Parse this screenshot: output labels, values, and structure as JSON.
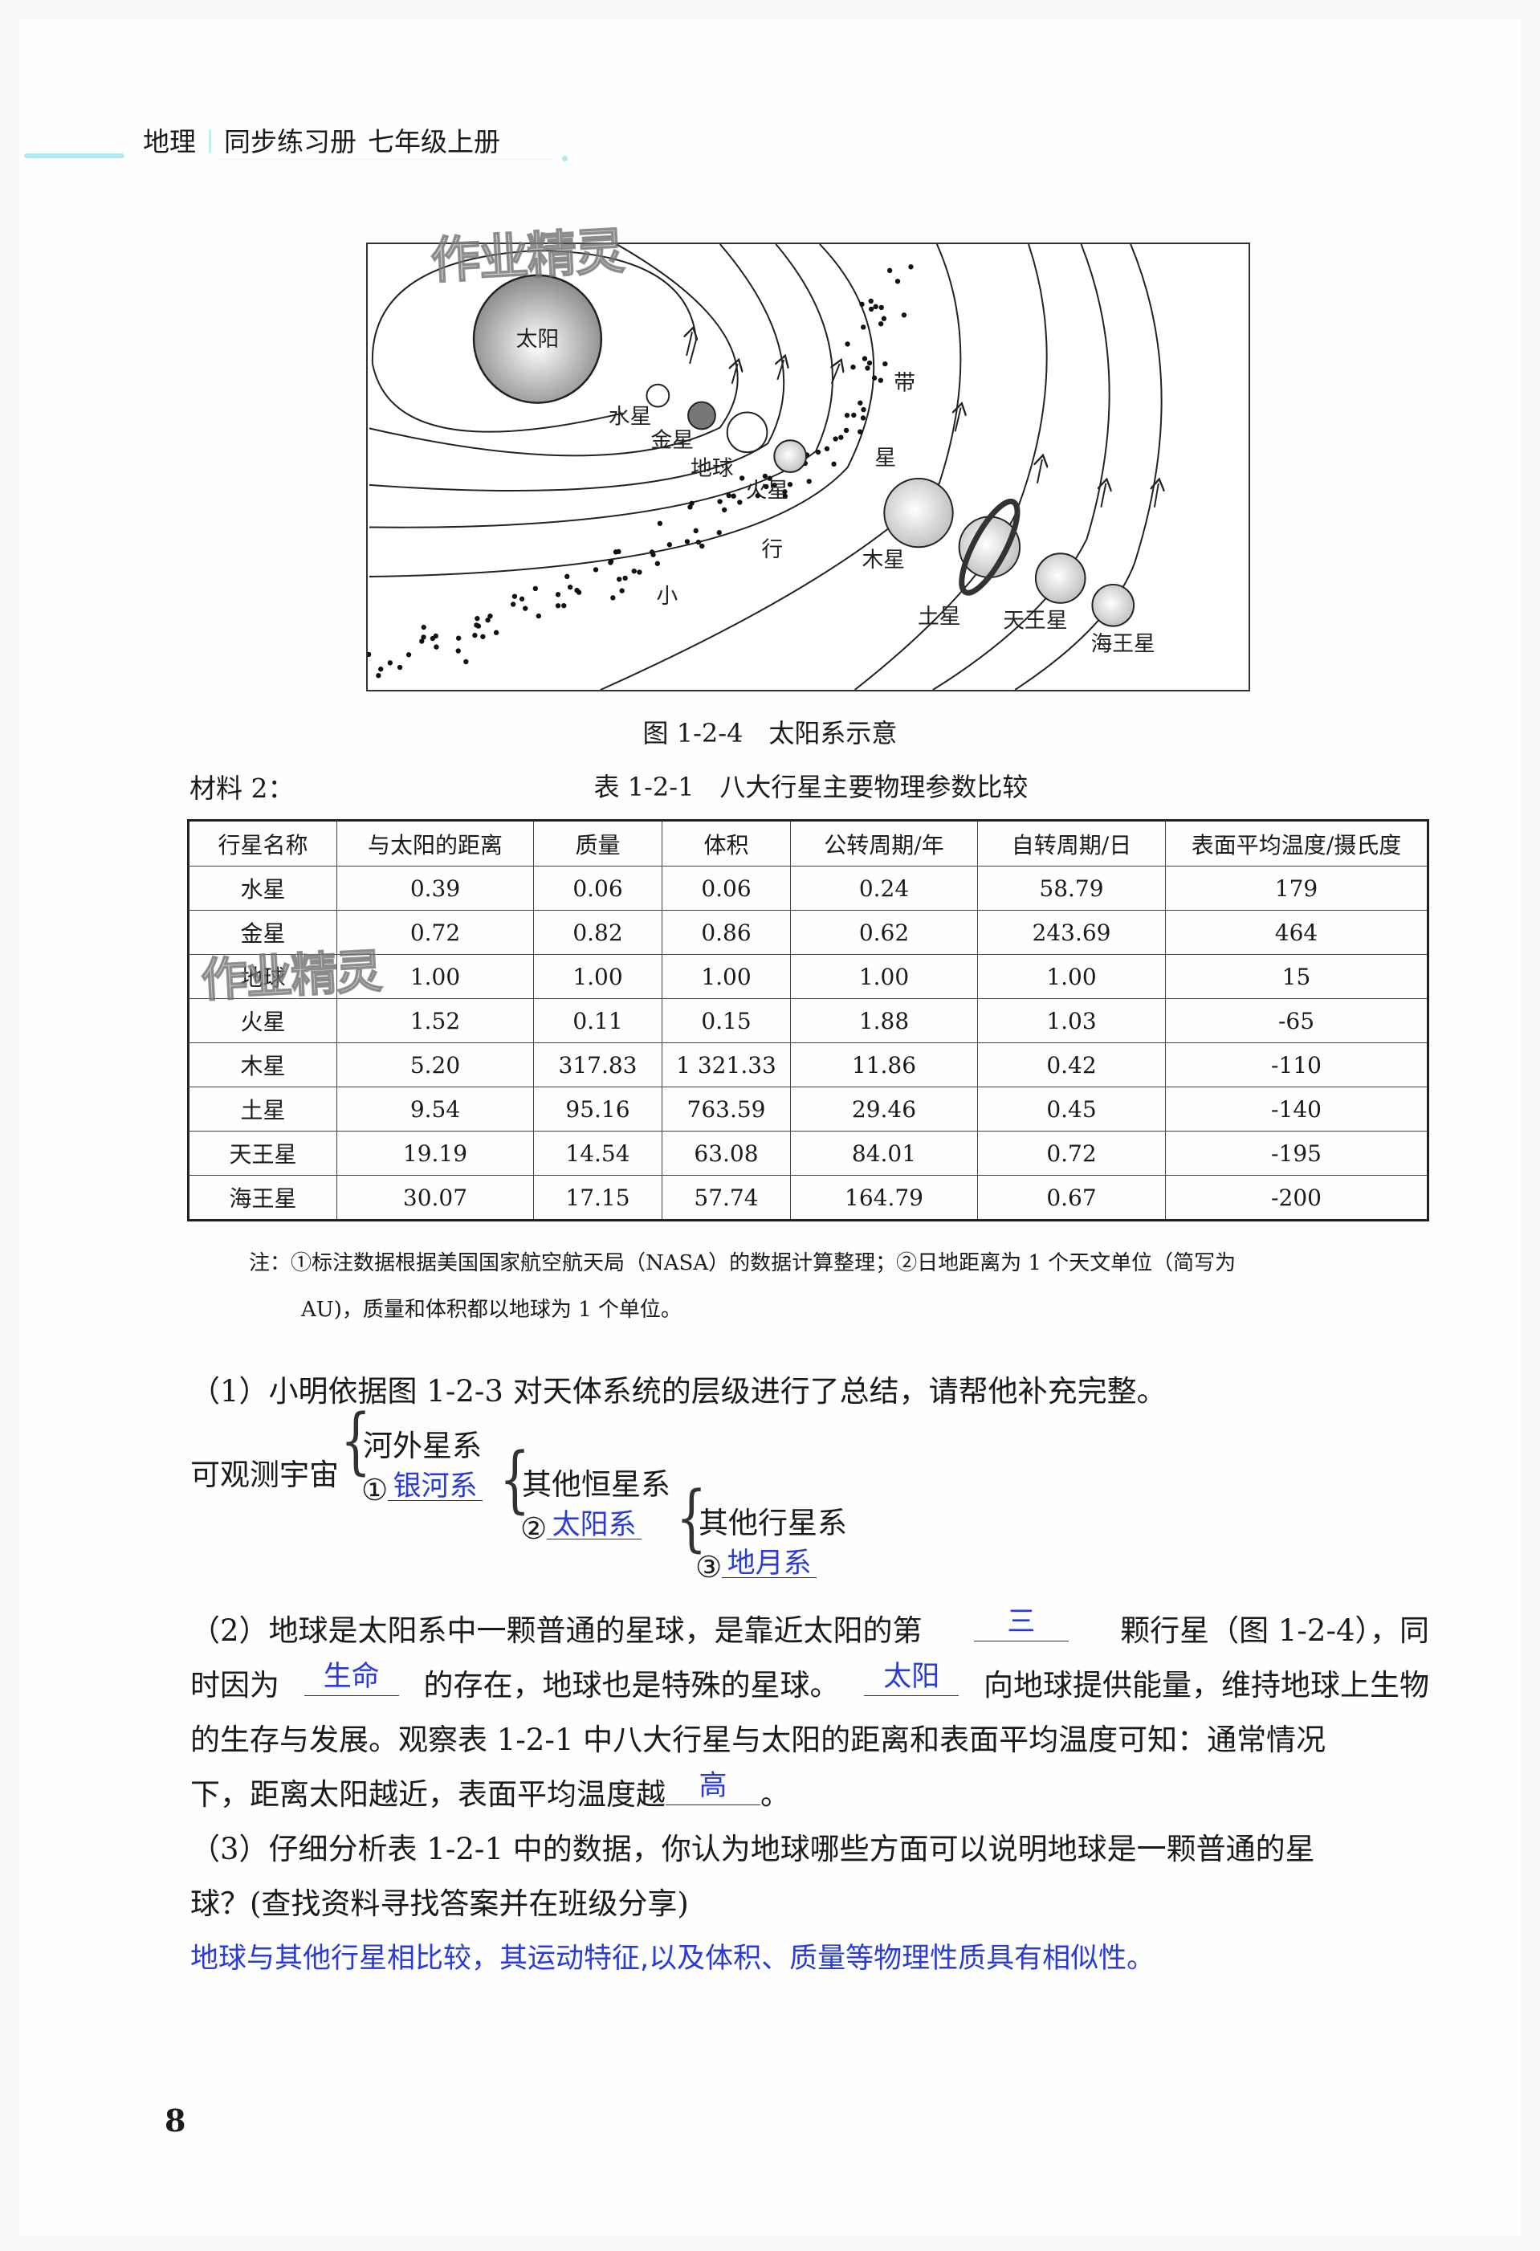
{
  "header": {
    "subject": "地理",
    "book": "同步练习册",
    "grade": "七年级上册"
  },
  "watermark": "作业精灵",
  "diagram": {
    "caption": "图 1-2-4　太阳系示意",
    "sun": "太阳",
    "planets": [
      "水星",
      "金星",
      "地球",
      "火星",
      "木星",
      "土星",
      "天王星",
      "海王星"
    ],
    "belt_chars": [
      "小",
      "行",
      "星",
      "带"
    ]
  },
  "material_label": "材料 2：",
  "table": {
    "title": "表 1-2-1　八大行星主要物理参数比较",
    "headers": [
      "行星名称",
      "与太阳的距离",
      "质量",
      "体积",
      "公转周期/年",
      "自转周期/日",
      "表面平均温度/摄氏度"
    ],
    "rows": [
      [
        "水星",
        "0.39",
        "0.06",
        "0.06",
        "0.24",
        "58.79",
        "179"
      ],
      [
        "金星",
        "0.72",
        "0.82",
        "0.86",
        "0.62",
        "243.69",
        "464"
      ],
      [
        "地球",
        "1.00",
        "1.00",
        "1.00",
        "1.00",
        "1.00",
        "15"
      ],
      [
        "火星",
        "1.52",
        "0.11",
        "0.15",
        "1.88",
        "1.03",
        "-65"
      ],
      [
        "木星",
        "5.20",
        "317.83",
        "1 321.33",
        "11.86",
        "0.42",
        "-110"
      ],
      [
        "土星",
        "9.54",
        "95.16",
        "763.59",
        "29.46",
        "0.45",
        "-140"
      ],
      [
        "天王星",
        "19.19",
        "14.54",
        "63.08",
        "84.01",
        "0.72",
        "-195"
      ],
      [
        "海王星",
        "30.07",
        "17.15",
        "57.74",
        "164.79",
        "0.67",
        "-200"
      ]
    ],
    "note_line1": "注：①标注数据根据美国国家航空航天局（NASA）的数据计算整理；②日地距离为 1 个天文单位（简写为",
    "note_line2": "AU)，质量和体积都以地球为 1 个单位。"
  },
  "q1": {
    "prompt": "（1）小明依据图 1-2-3 对天体系统的层级进行了总结，请帮他补充完整。",
    "root": "可观测宇宙",
    "l1_other": "河外星系",
    "l1_num": "①",
    "l1_ans": "银河系",
    "l2_other": "其他恒星系",
    "l2_num": "②",
    "l2_ans": "太阳系",
    "l3_other": "其他行星系",
    "l3_num": "③",
    "l3_ans": "地月系"
  },
  "q2": {
    "l1a": "（2）地球是太阳系中一颗普通的星球，是靠近太阳的第",
    "a1": "三",
    "l1b": "颗行星（图 1-2-4），同",
    "l2a": "时因为",
    "a2": "生命",
    "l2b": "的存在，地球也是特殊的星球。",
    "a3": "太阳",
    "l2c": "向地球提供能量，维持地球上生物",
    "l3": "的生存与发展。观察表 1-2-1 中八大行星与太阳的距离和表面平均温度可知：通常情况",
    "l4a": "下，距离太阳越近，表面平均温度越",
    "a4": "高",
    "l4b": "。"
  },
  "q3": {
    "l1": "（3）仔细分析表 1-2-1 中的数据，你认为地球哪些方面可以说明地球是一颗普通的星",
    "l2": "球？(查找资料寻找答案并在班级分享)",
    "answer": "地球与其他行星相比较，其运动特征,以及体积、质量等物理性质具有相似性。"
  },
  "page_number": "8",
  "colors": {
    "answer": "#2a3bd6",
    "header_accent": "#aeeaf0"
  }
}
